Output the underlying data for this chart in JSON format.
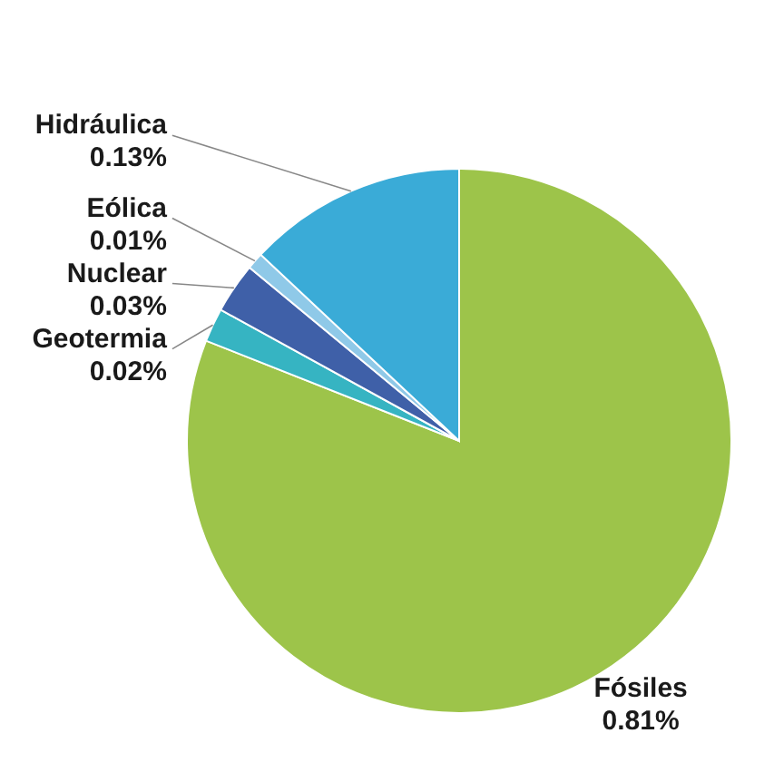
{
  "chart_data": {
    "type": "pie",
    "categories": [
      "Fósiles",
      "Geotermia",
      "Nuclear",
      "Eólica",
      "Hidráulica"
    ],
    "values": [
      0.81,
      0.02,
      0.03,
      0.01,
      0.13
    ],
    "value_labels": [
      "0.81%",
      "0.02%",
      "0.03%",
      "0.01%",
      "0.13%"
    ],
    "colors": [
      "#9dc44a",
      "#36b4c2",
      "#3f60a8",
      "#8fc9e8",
      "#3aabd7"
    ]
  }
}
